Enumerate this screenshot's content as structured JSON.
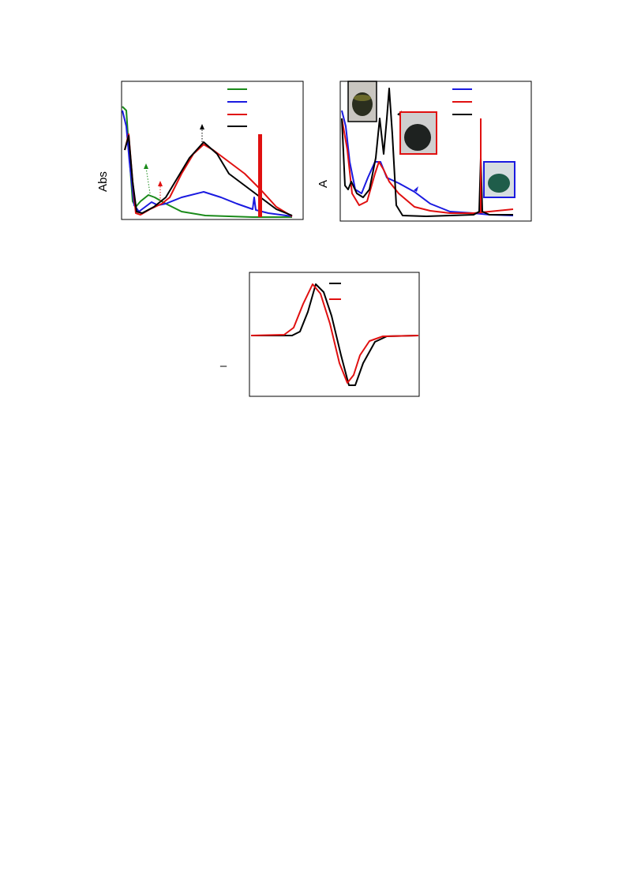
{
  "panels": [
    {
      "y_label": "Abs"
    },
    {
      "y_label": "A"
    },
    {
      "y_label": "–"
    }
  ]
}
